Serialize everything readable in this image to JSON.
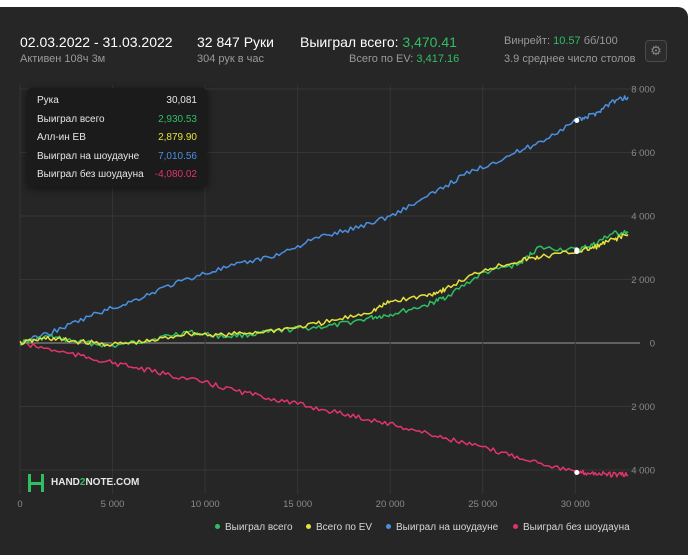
{
  "header": {
    "date_range": "02.03.2022 - 31.03.2022",
    "active": "Активен 108ч 3м",
    "hands": "32 847 Руки",
    "hands_per_hour": "304 рук в час",
    "won_total_label": "Выиграл всего:",
    "won_total_value": "3,470.41",
    "ev_label": "Всего по EV:",
    "ev_value": "3,417.16",
    "winrate_label": "Винрейт:",
    "winrate_value": "10.57",
    "winrate_unit": "бб/100",
    "tables": "3.9 среднее число столов"
  },
  "tooltip": {
    "rows": [
      {
        "label": "Рука",
        "value": "30,081",
        "color": "#e6e6e6"
      },
      {
        "label": "Выиграл всего",
        "value": "2,930.53",
        "color": "#2fbf63"
      },
      {
        "label": "Алл-ин EB",
        "value": "2,879.90",
        "color": "#e6e13c"
      },
      {
        "label": "Выиграл на шоудауне",
        "value": "7,010.56",
        "color": "#4a90e2"
      },
      {
        "label": "Выиграл без шоудауна",
        "value": "-4,080.02",
        "color": "#e0356a"
      }
    ]
  },
  "logo": {
    "brand_a": "HAND",
    "brand_b": "2",
    "brand_c": "NOTE.COM"
  },
  "chart_data": {
    "type": "line",
    "x_ticks": [
      0,
      5000,
      10000,
      15000,
      20000,
      25000,
      30000
    ],
    "x_tick_labels": [
      "0",
      "5 000",
      "10 000",
      "15 000",
      "20 000",
      "25 000",
      "30 000"
    ],
    "y_ticks": [
      8000,
      6000,
      4000,
      2000,
      0,
      -2000,
      -4000
    ],
    "y_tick_labels": [
      "8 000",
      "6 000",
      "4 000",
      "2 000",
      "0",
      "2 000",
      "4 000"
    ],
    "xlim": [
      0,
      32847
    ],
    "ylim": [
      -4500,
      8000
    ],
    "grid": true,
    "legend_position": "bottom",
    "hover_x": 30081,
    "series": [
      {
        "name": "Выиграл всего",
        "color": "#2fbf63",
        "x": [
          0,
          1500,
          3000,
          5000,
          7000,
          9000,
          11000,
          13000,
          15000,
          17000,
          19000,
          20000,
          22000,
          23000,
          25000,
          27000,
          28000,
          30081,
          31000,
          32000,
          32847
        ],
        "y": [
          0,
          200,
          50,
          -100,
          100,
          350,
          200,
          300,
          450,
          550,
          800,
          900,
          1200,
          1450,
          2200,
          2500,
          3000,
          2930,
          3100,
          3450,
          3470
        ]
      },
      {
        "name": "Всего по EV",
        "color": "#e6e13c",
        "x": [
          0,
          1500,
          3000,
          5000,
          7000,
          9000,
          11000,
          13000,
          15000,
          17000,
          19000,
          20000,
          22000,
          23000,
          25000,
          27000,
          28000,
          30081,
          31000,
          32000,
          32847
        ],
        "y": [
          0,
          150,
          50,
          -50,
          50,
          300,
          250,
          350,
          500,
          700,
          1000,
          1300,
          1500,
          1700,
          2300,
          2600,
          2700,
          2880,
          3000,
          3250,
          3417
        ]
      },
      {
        "name": "Выиграл на шоудауне",
        "color": "#4a90e2",
        "x": [
          0,
          2000,
          4000,
          6000,
          8000,
          10000,
          12000,
          14000,
          16000,
          18000,
          20000,
          22000,
          24000,
          26000,
          28000,
          30081,
          31000,
          32000,
          32847
        ],
        "y": [
          0,
          400,
          900,
          1300,
          1800,
          2200,
          2500,
          2800,
          3300,
          3600,
          4000,
          4600,
          5300,
          5800,
          6300,
          7010,
          7200,
          7600,
          7750
        ]
      },
      {
        "name": "Выиграл без шоудауна",
        "color": "#e0356a",
        "x": [
          0,
          2000,
          4000,
          6000,
          8000,
          10000,
          12000,
          14000,
          16000,
          18000,
          20000,
          22000,
          24000,
          26000,
          28000,
          30081,
          31000,
          32000,
          32847
        ],
        "y": [
          0,
          -250,
          -500,
          -750,
          -1000,
          -1250,
          -1550,
          -1800,
          -2050,
          -2300,
          -2550,
          -2850,
          -3150,
          -3450,
          -3750,
          -4080,
          -4100,
          -4150,
          -4150
        ]
      }
    ]
  }
}
